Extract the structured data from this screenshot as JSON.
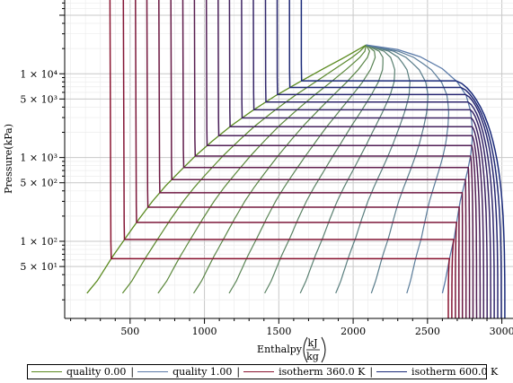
{
  "chart_data": {
    "type": "line",
    "title": "",
    "xlabel": "Enthalpy",
    "xlabel_unit_num": "kJ",
    "xlabel_unit_den": "kg",
    "ylabel": "Pressure(kPa)",
    "y_scale": "log",
    "xlim": [
      60,
      3075
    ],
    "ylim": [
      12,
      76000
    ],
    "grid": true,
    "legend_position": "bottom",
    "x_ticks": [
      {
        "value": 500,
        "label": "500"
      },
      {
        "value": 1000,
        "label": "1000"
      },
      {
        "value": 1500,
        "label": "1500"
      },
      {
        "value": 2000,
        "label": "2000"
      },
      {
        "value": 2500,
        "label": "2500"
      },
      {
        "value": 3000,
        "label": "3000"
      }
    ],
    "y_ticks": [
      {
        "value": 50,
        "label": "5 × 10¹"
      },
      {
        "value": 100,
        "label": "1 × 10²"
      },
      {
        "value": 500,
        "label": "5 × 10²"
      },
      {
        "value": 1000,
        "label": "1 × 10³"
      },
      {
        "value": 5000,
        "label": "5 × 10³"
      },
      {
        "value": 10000,
        "label": "1 × 10⁴"
      }
    ],
    "critical_point": {
      "h": 2087,
      "p": 22064
    },
    "saturation_liquid": {
      "name": "quality 0.00",
      "color": "#5a8a1e",
      "h": [
        210,
        280,
        380,
        470,
        560,
        650,
        740,
        840,
        940,
        1050,
        1180,
        1320,
        1480,
        1640,
        1800,
        1950,
        2087
      ],
      "p": [
        24,
        34,
        65,
        110,
        185,
        300,
        460,
        700,
        1050,
        1560,
        2400,
        3600,
        5500,
        8000,
        11500,
        16000,
        22064
      ]
    },
    "saturation_vapor": {
      "name": "quality 1.00",
      "color": "#5a7aa8",
      "h": [
        2600,
        2620,
        2650,
        2680,
        2700,
        2720,
        2745,
        2770,
        2790,
        2800,
        2800,
        2790,
        2760,
        2700,
        2600,
        2450,
        2300,
        2087
      ],
      "p": [
        24,
        34,
        65,
        110,
        185,
        300,
        460,
        700,
        1050,
        1560,
        2400,
        3600,
        5500,
        8000,
        11500,
        16000,
        19500,
        22064
      ]
    },
    "quality_lines": {
      "color_start": "#5a8a1e",
      "color_end": "#5a7aa8",
      "qualities": [
        0.1,
        0.2,
        0.3,
        0.4,
        0.5,
        0.6,
        0.7,
        0.8,
        0.9
      ]
    },
    "isotherms": {
      "color_start": "#8a1430",
      "color_end": "#1a2a7a",
      "temperatures": [
        360,
        375,
        390,
        405,
        420,
        435,
        450,
        465,
        480,
        495,
        510,
        525,
        540,
        555,
        570,
        585,
        600
      ],
      "p_sat": [
        62,
        105,
        168,
        255,
        380,
        545,
        760,
        1040,
        1390,
        1820,
        2340,
        2970,
        3720,
        4610,
        5650,
        6860,
        8250
      ]
    },
    "legend": [
      {
        "label": "quality 0.00",
        "color": "#5a8a1e"
      },
      {
        "label": "quality 1.00",
        "color": "#5a7aa8"
      },
      {
        "label": "isotherm 360.0 K",
        "color": "#8a1430"
      },
      {
        "label": "isotherm 600.0 K",
        "color": "#1a2a7a"
      }
    ]
  }
}
